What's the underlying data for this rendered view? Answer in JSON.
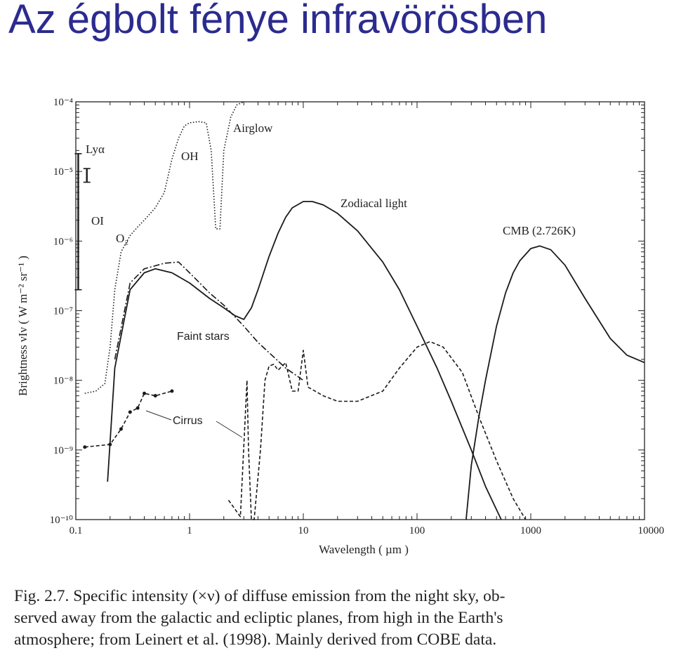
{
  "slide": {
    "title": "Az égbolt fénye infravörösben"
  },
  "chart_data": {
    "type": "line",
    "x_scale": "log",
    "y_scale": "log",
    "xlim": [
      0.1,
      10000
    ],
    "ylim": [
      1e-10,
      0.0001
    ],
    "xlabel": "Wavelength ( µm )",
    "ylabel": "Brightness νIν ( W m⁻² sr⁻¹ )",
    "x_ticks": [
      "0.1",
      "1",
      "10",
      "100",
      "1000",
      "10000"
    ],
    "y_ticks": [
      "10⁻¹⁰",
      "10⁻⁹",
      "10⁻⁸",
      "10⁻⁷",
      "10⁻⁶",
      "10⁻⁵",
      "10⁻⁴"
    ],
    "annotations": {
      "lya": "Lyα",
      "oi": "OI",
      "o2": "O₂",
      "oh": "OH",
      "airglow": "Airglow",
      "zodiacal": "Zodiacal light",
      "cmb": "CMB (2.726K)",
      "faint_stars": "Faint stars",
      "cirrus": "Cirrus"
    },
    "ranges": [
      {
        "name": "Lyα",
        "x": 0.105,
        "y": [
          1.8e-05,
          2e-07
        ]
      },
      {
        "name": "OI",
        "x": 0.125,
        "y": [
          1.1e-05,
          7e-06
        ]
      }
    ],
    "series": [
      {
        "label_ref": "zodiacal",
        "style": "solid",
        "points": [
          [
            0.19,
            3.5e-10
          ],
          [
            0.22,
            1.5e-08
          ],
          [
            0.3,
            2e-07
          ],
          [
            0.4,
            3.5e-07
          ],
          [
            0.5,
            4e-07
          ],
          [
            0.7,
            3.5e-07
          ],
          [
            1,
            2.5e-07
          ],
          [
            1.5,
            1.5e-07
          ],
          [
            2,
            1.1e-07
          ],
          [
            2.5,
            8.5e-08
          ],
          [
            3,
            7.5e-08
          ],
          [
            3.5,
            1.1e-07
          ],
          [
            4,
            2e-07
          ],
          [
            5,
            6e-07
          ],
          [
            6,
            1.3e-06
          ],
          [
            7,
            2.2e-06
          ],
          [
            8,
            3e-06
          ],
          [
            10,
            3.7e-06
          ],
          [
            12,
            3.7e-06
          ],
          [
            15,
            3.3e-06
          ],
          [
            20,
            2.5e-06
          ],
          [
            30,
            1.4e-06
          ],
          [
            50,
            5e-07
          ],
          [
            70,
            2e-07
          ],
          [
            100,
            6e-08
          ],
          [
            150,
            1.5e-08
          ],
          [
            200,
            5e-09
          ],
          [
            300,
            1e-09
          ],
          [
            400,
            3e-10
          ],
          [
            550,
            1e-10
          ]
        ]
      },
      {
        "label_ref": "faint_stars",
        "style": "dashdot",
        "points": [
          [
            0.22,
            2e-08
          ],
          [
            0.3,
            2.5e-07
          ],
          [
            0.4,
            4e-07
          ],
          [
            0.6,
            4.8e-07
          ],
          [
            0.8,
            5e-07
          ],
          [
            1,
            3.5e-07
          ],
          [
            1.5,
            1.8e-07
          ],
          [
            2,
            1.2e-07
          ],
          [
            3,
            6e-08
          ],
          [
            4,
            3.5e-08
          ],
          [
            5,
            2.5e-08
          ],
          [
            7,
            1.5e-08
          ],
          [
            10,
            1e-08
          ]
        ]
      },
      {
        "label_ref": "airglow",
        "style": "dotted",
        "points": [
          [
            0.12,
            6.5e-09
          ],
          [
            0.15,
            7e-09
          ],
          [
            0.18,
            9e-09
          ],
          [
            0.2,
            3e-08
          ],
          [
            0.22,
            2e-07
          ],
          [
            0.25,
            7e-07
          ],
          [
            0.3,
            1.2e-06
          ],
          [
            0.35,
            1.6e-06
          ],
          [
            0.4,
            2e-06
          ],
          [
            0.5,
            3e-06
          ],
          [
            0.6,
            5e-06
          ],
          [
            0.7,
            1.5e-05
          ],
          [
            0.8,
            3e-05
          ],
          [
            0.9,
            4.5e-05
          ],
          [
            1,
            5e-05
          ],
          [
            1.2,
            5.2e-05
          ],
          [
            1.4,
            5e-05
          ],
          [
            1.55,
            2e-05
          ],
          [
            1.7,
            1.5e-06
          ],
          [
            1.85,
            1.5e-06
          ],
          [
            2,
            2e-05
          ],
          [
            2.3,
            6e-05
          ],
          [
            2.6,
            9e-05
          ],
          [
            3,
            0.0001
          ]
        ]
      },
      {
        "label_ref": "cirrus",
        "style": "dashed",
        "points": [
          [
            0.12,
            1.1e-09
          ],
          [
            0.2,
            1.2e-09
          ],
          [
            0.25,
            2e-09
          ],
          [
            0.3,
            3.5e-09
          ],
          [
            0.35,
            4e-09
          ],
          [
            0.4,
            6.5e-09
          ],
          [
            0.5,
            6e-09
          ],
          [
            0.7,
            7e-09
          ]
        ]
      },
      {
        "style": "dashed",
        "points": [
          [
            2.2,
            1.9e-10
          ],
          [
            2.8,
            1.1e-10
          ],
          [
            3.2,
            1e-08
          ],
          [
            3.3,
            1e-09
          ],
          [
            3.5,
            1e-10
          ],
          [
            3.7,
            1e-10
          ],
          [
            4.2,
            1e-09
          ],
          [
            4.6,
            1e-08
          ],
          [
            5,
            1.6e-08
          ],
          [
            5.5,
            1.7e-08
          ],
          [
            6,
            1.4e-08
          ],
          [
            7,
            1.8e-08
          ],
          [
            8,
            7e-09
          ],
          [
            9,
            7e-09
          ],
          [
            10,
            2.7e-08
          ],
          [
            11,
            8e-09
          ],
          [
            15,
            6e-09
          ],
          [
            20,
            5e-09
          ],
          [
            30,
            5e-09
          ],
          [
            50,
            7e-09
          ],
          [
            70,
            1.5e-08
          ],
          [
            100,
            3e-08
          ],
          [
            130,
            3.6e-08
          ],
          [
            170,
            3e-08
          ],
          [
            250,
            1.3e-08
          ],
          [
            350,
            3e-09
          ],
          [
            500,
            7e-10
          ],
          [
            700,
            2e-10
          ],
          [
            900,
            1e-10
          ]
        ]
      },
      {
        "label_ref": "cmb",
        "style": "solid",
        "points": [
          [
            270,
            1e-10
          ],
          [
            300,
            6e-10
          ],
          [
            350,
            3e-09
          ],
          [
            400,
            1e-08
          ],
          [
            500,
            6e-08
          ],
          [
            600,
            1.8e-07
          ],
          [
            700,
            3.5e-07
          ],
          [
            800,
            5.2e-07
          ],
          [
            1000,
            7.8e-07
          ],
          [
            1200,
            8.5e-07
          ],
          [
            1500,
            7.5e-07
          ],
          [
            2000,
            4.5e-07
          ],
          [
            3000,
            1.5e-07
          ],
          [
            5000,
            4e-08
          ],
          [
            7000,
            2.3e-08
          ],
          [
            10000,
            1.8e-08
          ]
        ]
      }
    ]
  },
  "caption": {
    "line1": "Fig. 2.7. Specific intensity (×ν) of diffuse emission from the night sky, ob-",
    "line2": "served away from the galactic and ecliptic planes, from high in the Earth's",
    "line3": "atmosphere; from Leinert et al. (1998). Mainly derived from COBE data."
  }
}
